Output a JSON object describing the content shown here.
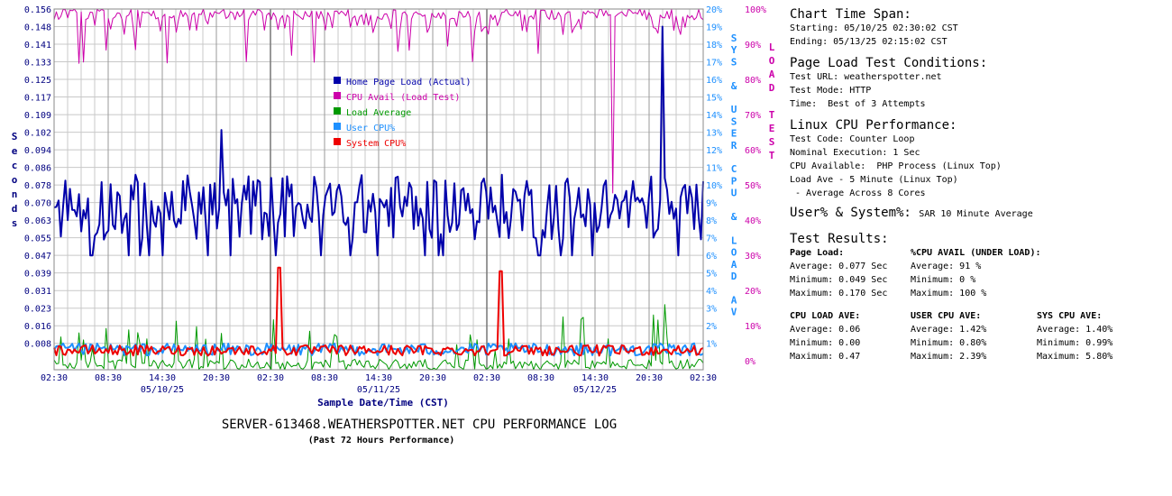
{
  "chart_data": {
    "type": "line",
    "title": "SERVER-613468.WEATHERSPOTTER.NET CPU PERFORMANCE LOG",
    "subtitle": "(Past 72 Hours Performance)",
    "xlabel": "Sample Date/Time (CST)",
    "ylabel_left": "Seconds",
    "ylabel_right1": "SYS & USER CPU & LOAD AV",
    "ylabel_right2": "LOAD TEST",
    "y_left_ticks": [
      "0.156",
      "0.148",
      "0.141",
      "0.133",
      "0.125",
      "0.117",
      "0.109",
      "0.102",
      "0.094",
      "0.086",
      "0.078",
      "0.070",
      "0.063",
      "0.055",
      "0.047",
      "0.039",
      "0.031",
      "0.023",
      "0.016",
      "0.008"
    ],
    "y_right1_ticks": [
      "20%",
      "19%",
      "18%",
      "17%",
      "16%",
      "15%",
      "14%",
      "13%",
      "12%",
      "11%",
      "10%",
      "9%",
      "8%",
      "7%",
      "6%",
      "5%",
      "4%",
      "3%",
      "2%",
      "1%"
    ],
    "y_right2_ticks": [
      "100%",
      "90%",
      "80%",
      "70%",
      "60%",
      "50%",
      "40%",
      "30%",
      "20%",
      "10%",
      "0%"
    ],
    "ylim_left": [
      0,
      0.164
    ],
    "ylim_cpu_pct": [
      0,
      20.5
    ],
    "x_ticks": [
      "02:30",
      "08:30",
      "14:30",
      "20:30",
      "02:30",
      "08:30",
      "14:30",
      "20:30",
      "02:30",
      "08:30",
      "14:30",
      "20:30",
      "02:30"
    ],
    "x_dates": [
      "05/10/25",
      "05/11/25",
      "05/12/25"
    ],
    "x_range_hours": [
      0,
      72
    ],
    "grid": true,
    "legend_placement": "upper-center",
    "series": [
      {
        "name": "Home Page Load (Actual)",
        "color": "#0000aa",
        "axis": "seconds",
        "summary": {
          "average": 0.077,
          "minimum": 0.049,
          "maximum": 0.17
        }
      },
      {
        "name": "CPU Avail (Load Test)",
        "color": "#cc00aa",
        "axis": "load_test_pct",
        "summary": {
          "average": 91,
          "minimum": 0,
          "maximum": 100
        }
      },
      {
        "name": "Load Average",
        "color": "#009900",
        "axis": "cpu_pct",
        "summary": {
          "average": 0.06,
          "minimum": 0.0,
          "maximum": 0.47
        }
      },
      {
        "name": "User CPU%",
        "color": "#1e90ff",
        "axis": "cpu_pct",
        "summary": {
          "average": 1.42,
          "minimum": 0.8,
          "maximum": 2.39
        }
      },
      {
        "name": "System CPU%",
        "color": "#ee0000",
        "axis": "cpu_pct",
        "summary": {
          "average": 1.4,
          "minimum": 0.99,
          "maximum": 5.8
        }
      }
    ],
    "annotations": [
      {
        "series": "Home Page Load (Actual)",
        "x_hour": 18.5,
        "y": 0.109
      },
      {
        "series": "Home Page Load (Actual)",
        "x_hour": 67.4,
        "y": 0.156
      },
      {
        "series": "System CPU%",
        "x_hour": 25,
        "y_pct": 5.8
      },
      {
        "series": "System CPU%",
        "x_hour": 49.5,
        "y_pct": 5.6
      },
      {
        "series": "CPU Avail (Load Test)",
        "x_hour": 62,
        "y_pct": 0
      }
    ]
  },
  "panel": {
    "span_title": "Chart Time Span:",
    "span_start": "Starting: 05/10/25 02:30:02 CST",
    "span_end": "Ending: 05/13/25 02:15:02 CST",
    "cond_title": "Page Load Test Conditions:",
    "cond_url": "Test URL: weatherspotter.net",
    "cond_mode": "Test Mode: HTTP",
    "cond_time": "Time:  Best of 3 Attempts",
    "linux_title": "Linux CPU Performance:",
    "linux_code": "Test Code: Counter Loop",
    "linux_exec": "Nominal Execution: 1 Sec",
    "linux_avail": "CPU Available:  PHP Process (Linux Top)",
    "linux_load": "Load Ave - 5 Minute (Linux Top)",
    "linux_cores": " - Average Across 8 Cores",
    "usersys_title": "User% & System%:",
    "usersys_note": "SAR 10 Minute Average",
    "results_title": "Test Results:",
    "page_load_head": "Page Load:",
    "page_load_avg": "Average: 0.077 Sec",
    "page_load_min": "Minimum: 0.049 Sec",
    "page_load_max": "Maximum: 0.170 Sec",
    "cpu_avail_head": "%CPU AVAIL (UNDER LOAD):",
    "cpu_avail_avg": "Average: 91 %",
    "cpu_avail_min": "Minimum: 0 %",
    "cpu_avail_max": "Maximum: 100 %",
    "load_head": "CPU LOAD AVE:",
    "load_avg": "Average: 0.06",
    "load_min": "Minimum: 0.00",
    "load_max": "Maximum: 0.47",
    "user_head": "USER CPU AVE:",
    "user_avg": "Average: 1.42%",
    "user_min": "Minimum: 0.80%",
    "user_max": "Maximum: 2.39%",
    "sys_head": "SYS CPU AVE:",
    "sys_avg": "Average: 1.40%",
    "sys_min": "Minimum: 0.99%",
    "sys_max": "Maximum: 5.80%"
  },
  "colors": {
    "left_axis": "#000080",
    "right_axis1": "#1e90ff",
    "right_axis2": "#cc00aa",
    "grid": "#c8c8c8",
    "grid_major": "#999999"
  }
}
